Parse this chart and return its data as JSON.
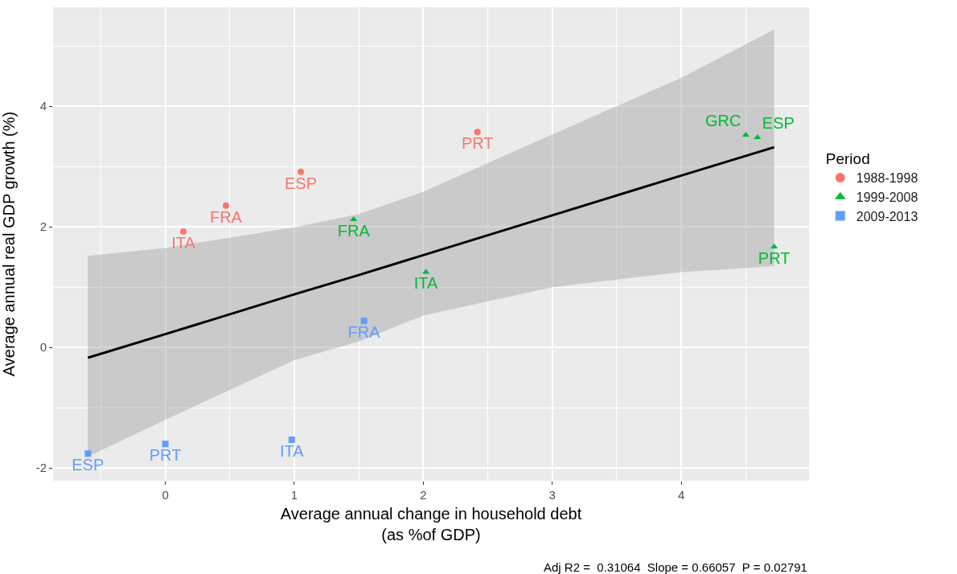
{
  "chart_data": {
    "type": "scatter",
    "xlabel": "Average annual change in household debt\n(as %of GDP)",
    "ylabel": "Average annual real GDP growth (%)",
    "legend_title": "Period",
    "annotations": [
      "Adj R2 =  0.31064  Slope = 0.66057  P = 0.02791"
    ],
    "series": [
      {
        "name": "1988-1998",
        "color": "#f8766d",
        "marker": "circle",
        "x": [
          0.14,
          0.47,
          1.05,
          2.42
        ],
        "values": [
          1.92,
          2.35,
          2.91,
          3.57
        ],
        "value_labels": [
          "ITA",
          "FRA",
          "ESP",
          "PRT"
        ]
      },
      {
        "name": "1999-2008",
        "color": "#00ba38",
        "marker": "triangle",
        "x": [
          1.46,
          2.02,
          4.5,
          4.59,
          4.72
        ],
        "values": [
          2.12,
          1.25,
          3.52,
          3.48,
          1.67
        ],
        "value_labels": [
          "FRA",
          "ITA",
          "GRC",
          "ESP",
          "PRT"
        ]
      },
      {
        "name": "2009-2013",
        "color": "#619cff",
        "marker": "square",
        "x": [
          1.54,
          0.98,
          0.0,
          -0.6
        ],
        "values": [
          0.44,
          -1.53,
          -1.6,
          -1.76
        ],
        "value_labels": [
          "FRA",
          "ITA",
          "PRT",
          "ESP"
        ]
      },
      {
        "type": "line",
        "color": "#000000",
        "marker": "none",
        "x": [
          -0.6,
          0,
          1,
          1.5,
          2,
          3,
          4,
          4.72
        ],
        "values": [
          -0.17,
          0.22,
          0.88,
          1.2,
          1.53,
          2.19,
          2.85,
          3.32
        ],
        "lower": [
          -1.81,
          -1.2,
          -0.21,
          0.1,
          0.53,
          1.0,
          1.25,
          1.35
        ],
        "upper": [
          1.52,
          1.65,
          1.99,
          2.21,
          2.58,
          3.53,
          4.47,
          5.27
        ]
      }
    ],
    "xlim": [
      -0.87,
      4.99
    ],
    "xticks": [
      0,
      1,
      2,
      3,
      4
    ],
    "ylim": [
      -2.21,
      5.64
    ],
    "yticks": [
      -2,
      0,
      2,
      4
    ],
    "grid": true,
    "legend": "right"
  }
}
